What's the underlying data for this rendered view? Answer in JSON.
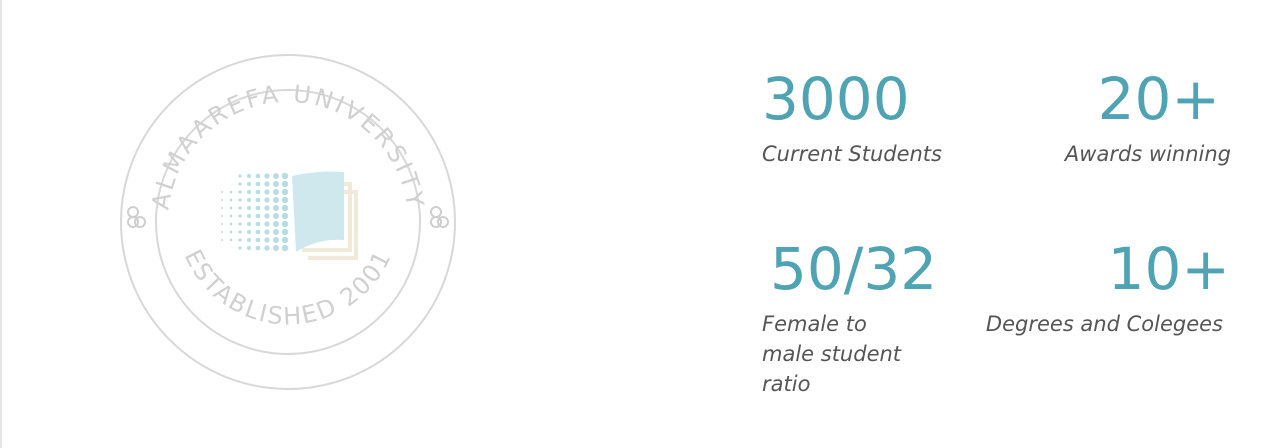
{
  "seal": {
    "top_text": "ALMAAREFA UNIVERSITY",
    "bottom_text": "ESTABLISHED 2001",
    "ring_color": "#d8d8d8",
    "text_color": "#d0d0d0",
    "book_blue": "#cfe8ee",
    "book_cream": "#f1ead8",
    "dots_color": "#b9dde6"
  },
  "stats": [
    {
      "number": "3000",
      "label": "Current Students"
    },
    {
      "number": "20+",
      "label": "Awards winning"
    },
    {
      "number": "50/32",
      "label_lines": [
        "Female to",
        "male student",
        "ratio"
      ]
    },
    {
      "number": "10+",
      "label": "Degrees and Colegees"
    }
  ],
  "colors": {
    "accent": "#4fa3b3",
    "label": "#555555"
  }
}
